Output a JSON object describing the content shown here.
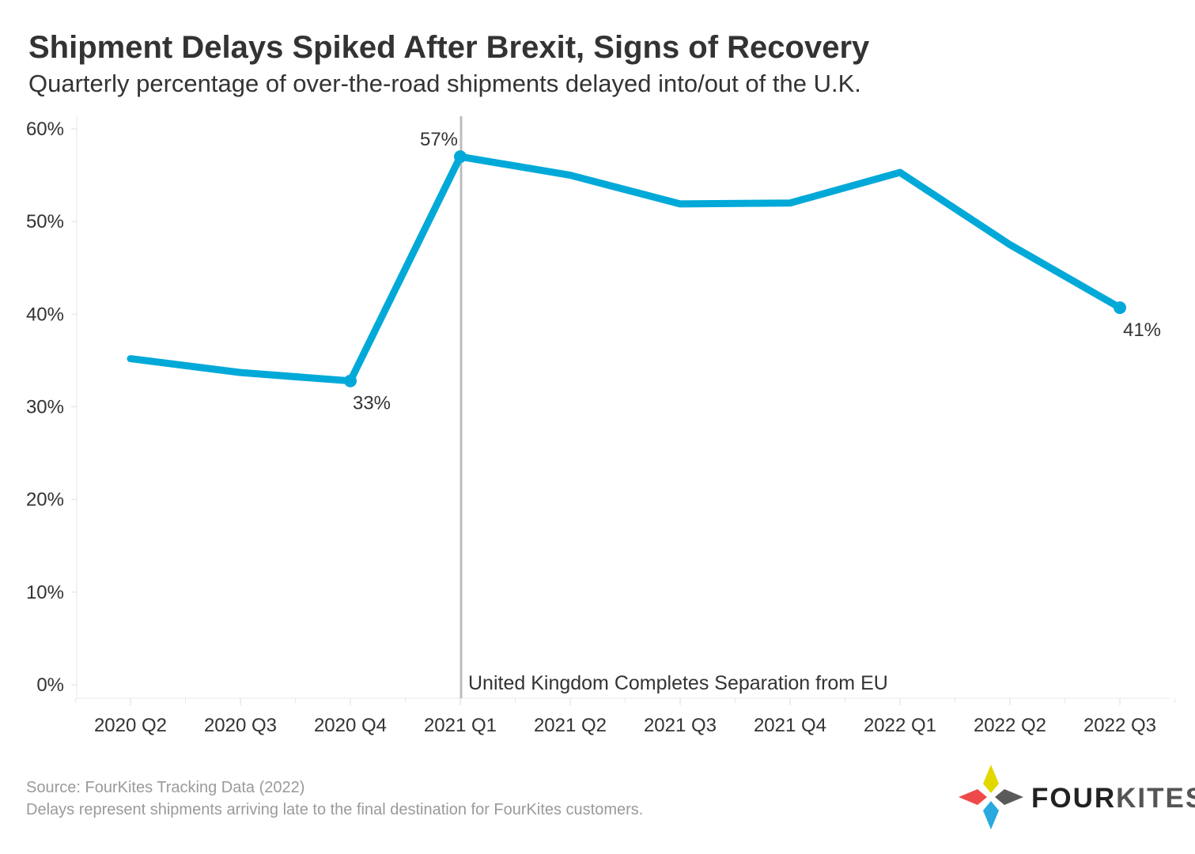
{
  "header": {
    "title": "Shipment Delays Spiked After Brexit, Signs of Recovery",
    "subtitle": "Quarterly percentage of over-the-road shipments delayed into/out of the U.K."
  },
  "chart_data": {
    "type": "line",
    "categories": [
      "2020 Q2",
      "2020 Q3",
      "2020 Q4",
      "2021 Q1",
      "2021 Q2",
      "2021 Q3",
      "2021 Q4",
      "2022 Q1",
      "2022 Q2",
      "2022 Q3"
    ],
    "series": [
      {
        "values": [
          35.2,
          33.7,
          32.8,
          57.0,
          55.0,
          51.9,
          52.0,
          55.3,
          47.5,
          40.7
        ]
      }
    ],
    "y_ticks": [
      "0%",
      "10%",
      "20%",
      "30%",
      "40%",
      "50%",
      "60%"
    ],
    "ylim": [
      0,
      60
    ],
    "data_labels": [
      {
        "index": 2,
        "text": "33%"
      },
      {
        "index": 3,
        "text": "57%"
      },
      {
        "index": 9,
        "text": "41%"
      }
    ],
    "annotation": {
      "category": "2021 Q1",
      "text": "United Kingdom Completes Separation from EU"
    },
    "line_color": "#00a9d8",
    "marker_line_color": "#bdbdbd",
    "grid": false
  },
  "footer": {
    "source": "Source: FourKites Tracking Data (2022)",
    "note": "Delays represent shipments arriving late to the final destination for FourKites customers."
  },
  "logo": {
    "text_a": "FOUR",
    "text_b": "KITES",
    "colors": {
      "top": "#e1d800",
      "left": "#ef4a4a",
      "right": "#5a5a5a",
      "bottom": "#29a9e0"
    }
  }
}
